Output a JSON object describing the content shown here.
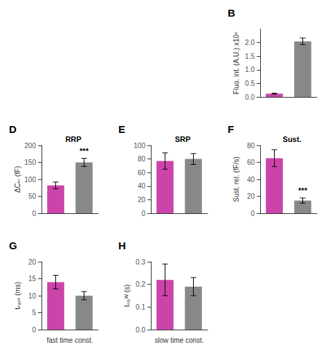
{
  "chart_data": [
    {
      "type": "bar",
      "annotations": [
        {
          "text": "B"
        }
      ],
      "categories": [
        null,
        null
      ],
      "values": [
        0.12,
        2.05
      ],
      "errors": [
        0.02,
        0.12
      ],
      "colors": [
        "#CC44AA",
        "#888888"
      ],
      "ylabel": "Fluo. int. (A.U.) x10⁶",
      "ylim": [
        0,
        2.5
      ],
      "yticks": [
        {
          "value": 0,
          "label": "0.0"
        },
        0.5,
        {
          "value": 1,
          "label": "1.0"
        },
        1.5,
        {
          "value": 2,
          "label": "2.0"
        }
      ],
      "grid": false,
      "tick_labels": "y"
    },
    {
      "type": "bar",
      "title": "RRP",
      "annotations": [
        {
          "text": "D"
        },
        {
          "text": "***",
          "x": 1,
          "y": 162
        }
      ],
      "categories": [
        null,
        null
      ],
      "values": [
        82,
        150
      ],
      "errors": [
        10,
        12
      ],
      "colors": [
        "#CC44AA",
        "#888888"
      ],
      "ylabel": "ΔCₘ (fF)",
      "ylim": [
        0,
        200
      ],
      "yticks": [
        0,
        50,
        100,
        150,
        200
      ],
      "grid": false,
      "tick_labels": "y"
    },
    {
      "type": "bar",
      "title": "SRP",
      "annotations": [
        {
          "text": "E"
        }
      ],
      "categories": [
        null,
        null
      ],
      "values": [
        77,
        80
      ],
      "errors": [
        12,
        8
      ],
      "colors": [
        "#CC44AA",
        "#888888"
      ],
      "ylim": [
        0,
        100
      ],
      "yticks": [
        0,
        20,
        40,
        60,
        80,
        100
      ],
      "grid": false,
      "tick_labels": "y"
    },
    {
      "type": "bar",
      "title": "Sust.",
      "annotations": [
        {
          "text": "F"
        },
        {
          "text": "***",
          "x": 1,
          "y": 18
        }
      ],
      "categories": [
        null,
        null
      ],
      "values": [
        65,
        15
      ],
      "errors": [
        10,
        3
      ],
      "colors": [
        "#CC44AA",
        "#888888"
      ],
      "ylabel": "Sust. rel. (fF/s)",
      "ylim": [
        0,
        80
      ],
      "yticks": [
        0,
        20,
        40,
        60,
        80
      ],
      "grid": false,
      "tick_labels": "y"
    },
    {
      "type": "bar",
      "annotations": [
        {
          "text": "G"
        }
      ],
      "categories": [
        null,
        null
      ],
      "values": [
        14.0,
        10.0
      ],
      "errors": [
        2.0,
        1.2
      ],
      "colors": [
        "#CC44AA",
        "#888888"
      ],
      "ylabel": "tₙₐₛₜ (ms)",
      "xlabel": "fast time const.",
      "ylim": [
        0,
        20
      ],
      "yticks": [
        0,
        5,
        10,
        15,
        20
      ],
      "grid": false,
      "tick_labels": "y"
    },
    {
      "type": "bar",
      "annotations": [
        {
          "text": "H"
        }
      ],
      "categories": [
        null,
        null
      ],
      "values": [
        0.22,
        0.19
      ],
      "errors": [
        0.07,
        0.04
      ],
      "colors": [
        "#CC44AA",
        "#888888"
      ],
      "ylabel": "tₛₗₒᵂ (s)",
      "xlabel": "slow time const.",
      "ylim": [
        0.0,
        0.3
      ],
      "yticks": [
        {
          "value": 0,
          "label": "0.0"
        },
        0.1,
        0.2,
        0.3
      ],
      "grid": false,
      "tick_labels": "y"
    }
  ]
}
